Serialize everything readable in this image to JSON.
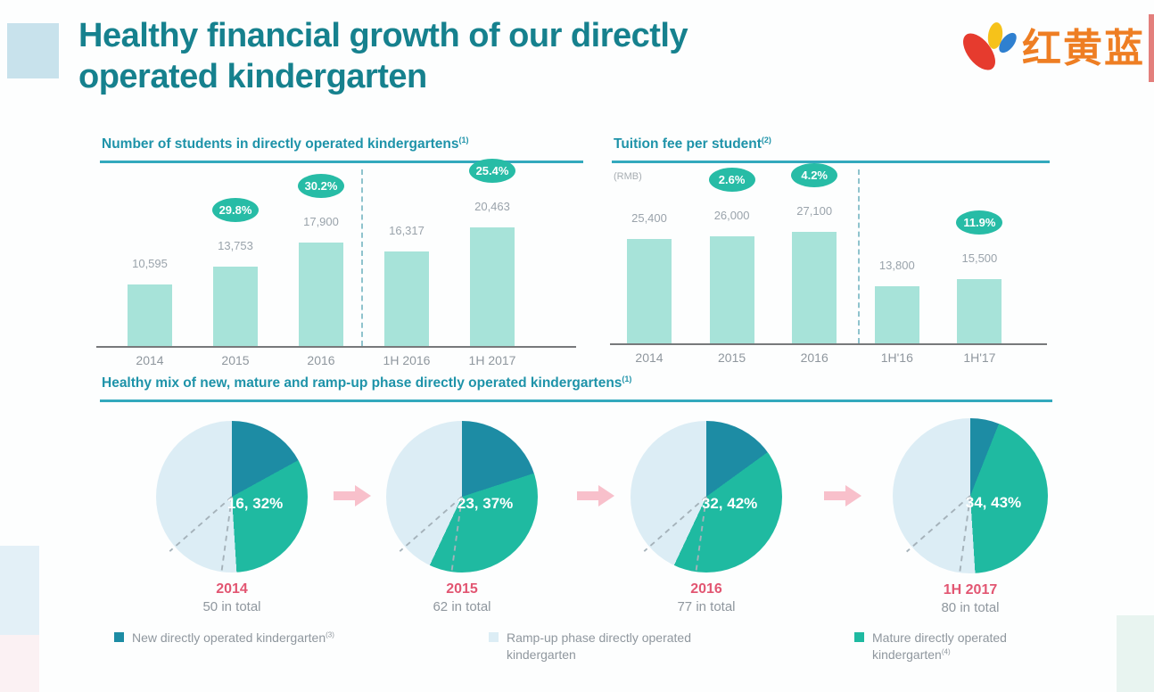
{
  "header": {
    "title": "Healthy financial growth of our directly operated kindergarten",
    "title_line1": "Healthy financial growth of our directly",
    "title_line2": "operated kindergarten",
    "logo": {
      "text": "红黄蓝"
    }
  },
  "colors": {
    "title_teal": "#16818e",
    "chart_header_teal": "#1e93a9",
    "bar_fill": "#a7e3d9",
    "badge_teal": "#27bca6",
    "pie_new": "#1d8ca4",
    "pie_mature": "#1fbaa1",
    "pie_rampup": "#dcedf5",
    "year_pink": "#e25672",
    "arrow_pink": "#f8c0cb",
    "logo_orange": "#ee7e23"
  },
  "chart_data": [
    {
      "type": "bar",
      "title": "Number of students in directly operated kindergartens",
      "title_superscript": "(1)",
      "categories": [
        "2014",
        "2015",
        "2016",
        "1H 2016",
        "1H 2017"
      ],
      "values": [
        10595,
        13753,
        17900,
        16317,
        20463
      ],
      "value_labels": [
        "10,595",
        "13,753",
        "17,900",
        "16,317",
        "20,463"
      ],
      "growth_badges": [
        null,
        "29.8%",
        "30.2%",
        null,
        "25.4%"
      ],
      "separator_after": "2016",
      "ylim": [
        0,
        22000
      ],
      "grid": false,
      "legend_position": "none"
    },
    {
      "type": "bar",
      "title": "Tuition fee per student",
      "title_superscript": "(2)",
      "unit": "(RMB)",
      "categories": [
        "2014",
        "2015",
        "2016",
        "1H'16",
        "1H'17"
      ],
      "values": [
        25400,
        26000,
        27100,
        13800,
        15500
      ],
      "value_labels": [
        "25,400",
        "26,000",
        "27,100",
        "13,800",
        "15,500"
      ],
      "growth_badges": [
        null,
        "2.6%",
        "4.2%",
        null,
        "11.9%"
      ],
      "separator_after": "2016",
      "ylim": [
        0,
        29000
      ],
      "grid": false,
      "legend_position": "none"
    },
    {
      "type": "pie-series",
      "title": "Healthy mix of new, mature and ramp-up phase directly operated kindergartens",
      "title_superscript": "(1)",
      "pies": [
        {
          "year": "2014",
          "total_label": "50 in total",
          "callout": "16, 32%",
          "slices": [
            {
              "name": "New directly operated kindergarten",
              "pct": 17
            },
            {
              "name": "Mature directly operated kindergarten",
              "count": 16,
              "pct": 32
            },
            {
              "name": "Ramp-up phase directly operated kindergarten",
              "pct": 51
            }
          ]
        },
        {
          "year": "2015",
          "total_label": "62 in total",
          "callout": "23, 37%",
          "slices": [
            {
              "name": "New directly operated kindergarten",
              "pct": 20
            },
            {
              "name": "Mature directly operated kindergarten",
              "count": 23,
              "pct": 37
            },
            {
              "name": "Ramp-up phase directly operated kindergarten",
              "pct": 43
            }
          ]
        },
        {
          "year": "2016",
          "total_label": "77 in total",
          "callout": "32, 42%",
          "slices": [
            {
              "name": "New directly operated kindergarten",
              "pct": 15
            },
            {
              "name": "Mature directly operated kindergarten",
              "count": 32,
              "pct": 42
            },
            {
              "name": "Ramp-up phase directly operated kindergarten",
              "pct": 43
            }
          ]
        },
        {
          "year": "1H 2017",
          "total_label": "80 in total",
          "callout": "34, 43%",
          "slices": [
            {
              "name": "New directly operated kindergarten",
              "pct": 6
            },
            {
              "name": "Mature directly operated kindergarten",
              "count": 34,
              "pct": 43
            },
            {
              "name": "Ramp-up phase directly operated kindergarten",
              "pct": 51
            }
          ]
        }
      ],
      "legend": [
        {
          "label": "New directly operated kindergarten",
          "superscript": "(3)",
          "color": "#1d8ca4"
        },
        {
          "label": "Ramp-up phase directly operated kindergarten",
          "superscript": "",
          "color": "#dcedf5"
        },
        {
          "label": "Mature directly operated kindergarten",
          "superscript": "(4)",
          "color": "#1fbaa1"
        }
      ]
    }
  ]
}
